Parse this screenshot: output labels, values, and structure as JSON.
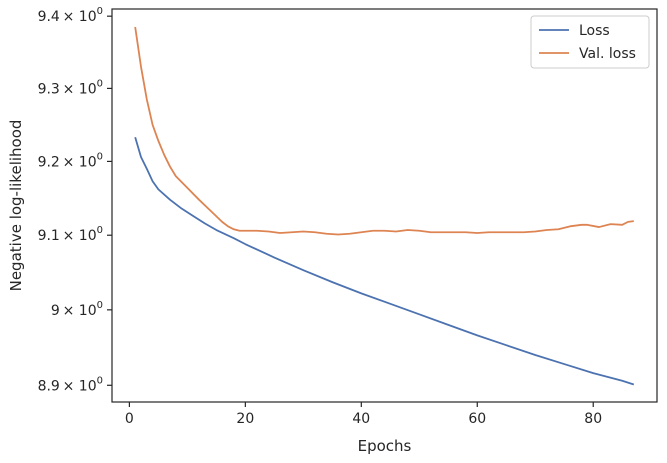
{
  "chart_data": {
    "type": "line",
    "xlabel": "Epochs",
    "ylabel": "Negative log-likelihood",
    "xlim": [
      -3,
      91
    ],
    "ylim": [
      8.878,
      9.41
    ],
    "y_scale": "log",
    "grid": false,
    "legend_position": "top-right",
    "x_ticks": [
      0,
      20,
      40,
      60,
      80
    ],
    "x_tick_labels": [
      "0",
      "20",
      "40",
      "60",
      "80"
    ],
    "y_ticks": [
      {
        "value": 8.9,
        "mantissa": "8.9",
        "base": "× 10",
        "exp": "0"
      },
      {
        "value": 9.0,
        "mantissa": "9",
        "base": "× 10",
        "exp": "0"
      },
      {
        "value": 9.1,
        "mantissa": "9.1",
        "base": "× 10",
        "exp": "0"
      },
      {
        "value": 9.2,
        "mantissa": "9.2",
        "base": "× 10",
        "exp": "0"
      },
      {
        "value": 9.3,
        "mantissa": "9.3",
        "base": "× 10",
        "exp": "0"
      },
      {
        "value": 9.4,
        "mantissa": "9.4",
        "base": "× 10",
        "exp": "0"
      }
    ],
    "series": [
      {
        "name": "Loss",
        "color": "#4c72b0",
        "points": [
          [
            1,
            9.233
          ],
          [
            2,
            9.206
          ],
          [
            3,
            9.19
          ],
          [
            4,
            9.173
          ],
          [
            5,
            9.162
          ],
          [
            7,
            9.148
          ],
          [
            9,
            9.136
          ],
          [
            11,
            9.126
          ],
          [
            13,
            9.116
          ],
          [
            15,
            9.107
          ],
          [
            18,
            9.096
          ],
          [
            20,
            9.088
          ],
          [
            25,
            9.07
          ],
          [
            30,
            9.053
          ],
          [
            35,
            9.037
          ],
          [
            40,
            9.022
          ],
          [
            45,
            9.008
          ],
          [
            50,
            8.994
          ],
          [
            55,
            8.98
          ],
          [
            60,
            8.966
          ],
          [
            65,
            8.953
          ],
          [
            70,
            8.94
          ],
          [
            75,
            8.928
          ],
          [
            80,
            8.916
          ],
          [
            85,
            8.906
          ],
          [
            87,
            8.901
          ]
        ]
      },
      {
        "name": "Val. loss",
        "color": "#dd8452",
        "points": [
          [
            1,
            9.385
          ],
          [
            2,
            9.33
          ],
          [
            3,
            9.285
          ],
          [
            4,
            9.25
          ],
          [
            5,
            9.228
          ],
          [
            6,
            9.209
          ],
          [
            7,
            9.193
          ],
          [
            8,
            9.18
          ],
          [
            10,
            9.164
          ],
          [
            12,
            9.148
          ],
          [
            14,
            9.133
          ],
          [
            16,
            9.118
          ],
          [
            17,
            9.112
          ],
          [
            18,
            9.108
          ],
          [
            19,
            9.106
          ],
          [
            20,
            9.106
          ],
          [
            22,
            9.106
          ],
          [
            24,
            9.105
          ],
          [
            26,
            9.103
          ],
          [
            28,
            9.104
          ],
          [
            30,
            9.105
          ],
          [
            32,
            9.104
          ],
          [
            34,
            9.102
          ],
          [
            36,
            9.101
          ],
          [
            38,
            9.102
          ],
          [
            40,
            9.104
          ],
          [
            42,
            9.106
          ],
          [
            44,
            9.106
          ],
          [
            46,
            9.105
          ],
          [
            48,
            9.107
          ],
          [
            50,
            9.106
          ],
          [
            52,
            9.104
          ],
          [
            54,
            9.104
          ],
          [
            56,
            9.104
          ],
          [
            58,
            9.104
          ],
          [
            60,
            9.103
          ],
          [
            62,
            9.104
          ],
          [
            64,
            9.104
          ],
          [
            66,
            9.104
          ],
          [
            68,
            9.104
          ],
          [
            70,
            9.105
          ],
          [
            72,
            9.107
          ],
          [
            74,
            9.108
          ],
          [
            76,
            9.112
          ],
          [
            78,
            9.114
          ],
          [
            79,
            9.114
          ],
          [
            81,
            9.111
          ],
          [
            83,
            9.115
          ],
          [
            85,
            9.114
          ],
          [
            86,
            9.118
          ],
          [
            87,
            9.119
          ]
        ]
      }
    ]
  }
}
